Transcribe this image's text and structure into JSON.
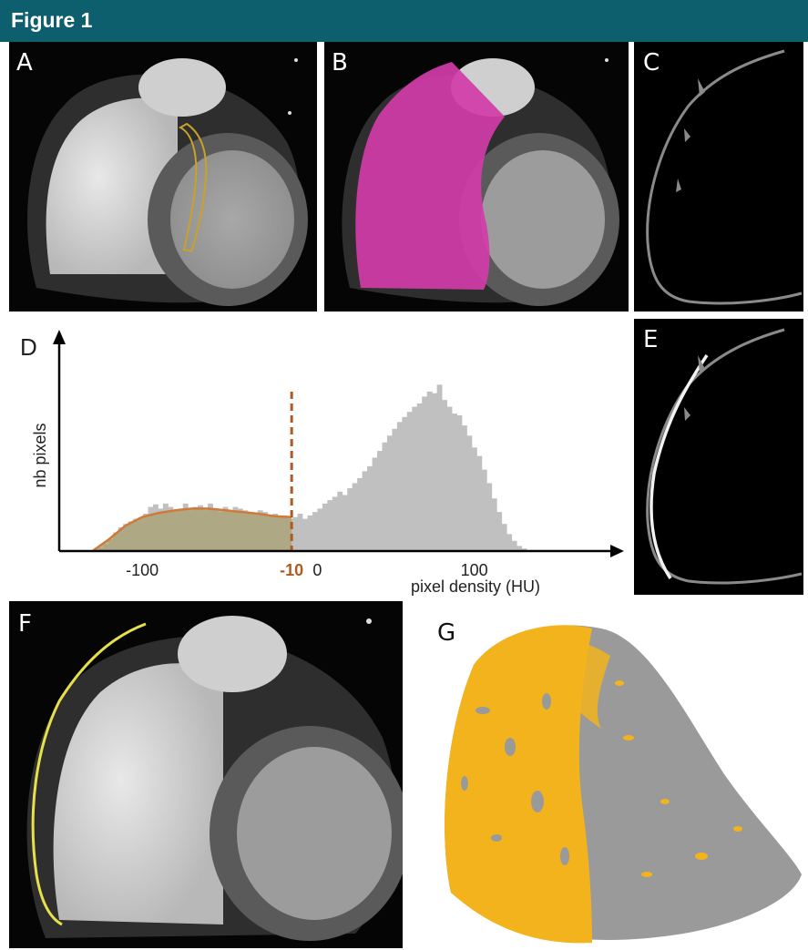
{
  "figure": {
    "title": "Figure 1"
  },
  "panels": {
    "a": {
      "label": "A"
    },
    "b": {
      "label": "B"
    },
    "c": {
      "label": "C"
    },
    "d": {
      "label": "D"
    },
    "e": {
      "label": "E"
    },
    "f": {
      "label": "F"
    },
    "g": {
      "label": "G"
    }
  },
  "colors": {
    "header": "#0e5f6e",
    "fat_fill": "#a8a070",
    "fat_curve": "#d07a3a",
    "threshold": "#b05a20",
    "histogram": "#c0c0c0",
    "magenta": "#d23ca8",
    "contour_yellow": "#e6e14a",
    "surface_orange": "#f2b31c",
    "surface_gray": "#9a9a9a"
  },
  "chart_data": {
    "type": "bar",
    "xlabel": "pixel density (HU)",
    "ylabel": "nb pixels",
    "threshold": {
      "x": -10,
      "label": "-10"
    },
    "xticks": [
      {
        "value": -100,
        "label": "-100"
      },
      {
        "value": 0,
        "label": "0"
      },
      {
        "value": 100,
        "label": "100"
      }
    ],
    "xlim": [
      -150,
      160
    ],
    "ylim": [
      0,
      220
    ],
    "bin_width": 3,
    "series": [
      {
        "x": [
          -128,
          -125,
          -122,
          -119,
          -116,
          -113,
          -110,
          -107,
          -104,
          -101,
          -98,
          -95,
          -92,
          -89,
          -86,
          -83,
          -80,
          -77,
          -74,
          -71,
          -68,
          -65,
          -62,
          -59,
          -56,
          -53,
          -50,
          -47,
          -44,
          -41,
          -38,
          -35,
          -32,
          -29,
          -26,
          -23,
          -20,
          -17,
          -14,
          -11,
          -8,
          -5,
          -2,
          1,
          4,
          7,
          10,
          13,
          16,
          19,
          22,
          25,
          28,
          31,
          34,
          37,
          40,
          43,
          46,
          49,
          52,
          55,
          58,
          61,
          64,
          67,
          70,
          73,
          76,
          79,
          82,
          85,
          88,
          91,
          94,
          97,
          100,
          103,
          106,
          109,
          112,
          115,
          118,
          121,
          124,
          127,
          130,
          133
        ],
        "values": [
          2,
          4,
          8,
          14,
          22,
          28,
          32,
          35,
          38,
          40,
          44,
          52,
          55,
          50,
          56,
          52,
          48,
          50,
          56,
          48,
          52,
          54,
          48,
          56,
          50,
          46,
          52,
          48,
          52,
          50,
          48,
          46,
          44,
          48,
          46,
          42,
          44,
          40,
          42,
          38,
          40,
          44,
          38,
          42,
          46,
          50,
          56,
          60,
          64,
          70,
          66,
          74,
          80,
          86,
          94,
          100,
          110,
          118,
          128,
          136,
          144,
          152,
          158,
          164,
          170,
          174,
          182,
          188,
          186,
          196,
          178,
          170,
          162,
          160,
          148,
          136,
          122,
          112,
          96,
          80,
          62,
          46,
          32,
          20,
          12,
          6,
          3,
          1
        ]
      },
      {
        "x": [
          -130,
          -120,
          -110,
          -100,
          -90,
          -80,
          -70,
          -60,
          -50,
          -40,
          -30,
          -20,
          -10
        ],
        "values": [
          0,
          14,
          30,
          40,
          45,
          48,
          50,
          50,
          48,
          46,
          44,
          41,
          40
        ]
      }
    ]
  }
}
